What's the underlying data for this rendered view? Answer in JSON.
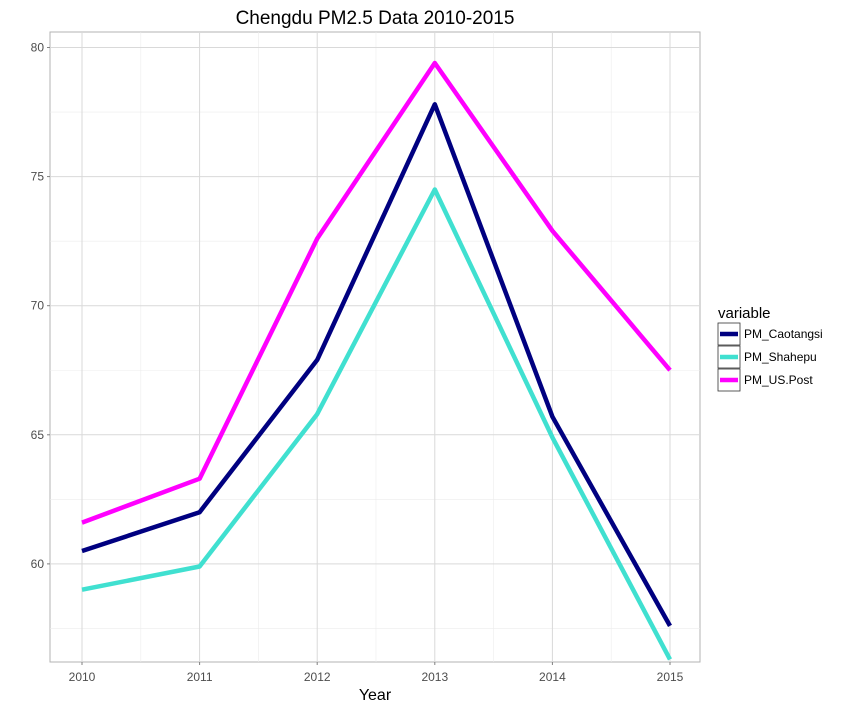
{
  "chart_data": {
    "type": "line",
    "title": "Chengdu PM2.5 Data 2010-2015",
    "xlabel": "Year",
    "ylabel": "",
    "x": [
      "2010",
      "2011",
      "2012",
      "2013",
      "2014",
      "2015"
    ],
    "ylim": [
      56.2,
      80.6
    ],
    "yticks": [
      60,
      65,
      70,
      75,
      80
    ],
    "grid": true,
    "legend": {
      "title": "variable",
      "position": "right"
    },
    "series": [
      {
        "name": "PM_Caotangsi",
        "color": "#000080",
        "values": [
          60.5,
          62.0,
          67.9,
          77.8,
          65.7,
          57.6
        ]
      },
      {
        "name": "PM_Shahepu",
        "color": "#40e0d0",
        "values": [
          59.0,
          59.9,
          65.8,
          74.5,
          64.9,
          56.3
        ]
      },
      {
        "name": "PM_US.Post",
        "color": "#ff00ff",
        "values": [
          61.6,
          63.3,
          72.6,
          79.4,
          72.9,
          67.5
        ]
      }
    ]
  }
}
